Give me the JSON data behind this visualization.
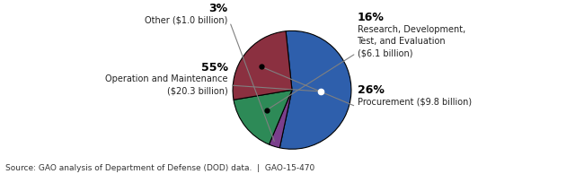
{
  "slices": [
    {
      "label": "Operation and Maintenance\n($20.3 billion)",
      "pct": 55,
      "pct_label": "55%",
      "value": 20.3,
      "color": "#2E5FAC",
      "side": "left"
    },
    {
      "label": "Other ($1.0 billion)",
      "pct": 3,
      "pct_label": "3%",
      "value": 1.0,
      "color": "#7B3F8C",
      "side": "left"
    },
    {
      "label": "Research, Development,\nTest, and Evaluation\n($6.1 billion)",
      "pct": 16,
      "pct_label": "16%",
      "value": 6.1,
      "color": "#2D8A57",
      "side": "right"
    },
    {
      "label": "Procurement ($9.8 billion)",
      "pct": 26,
      "pct_label": "26%",
      "value": 9.8,
      "color": "#8B3040",
      "side": "right"
    }
  ],
  "source_text": "Source: GAO analysis of Department of Defense (DOD) data.  |  GAO-15-470",
  "bg_color": "#ffffff",
  "pie_edge_color": "#000000",
  "start_angle": 96,
  "label_fontsize": 7,
  "pct_fontsize": 9
}
